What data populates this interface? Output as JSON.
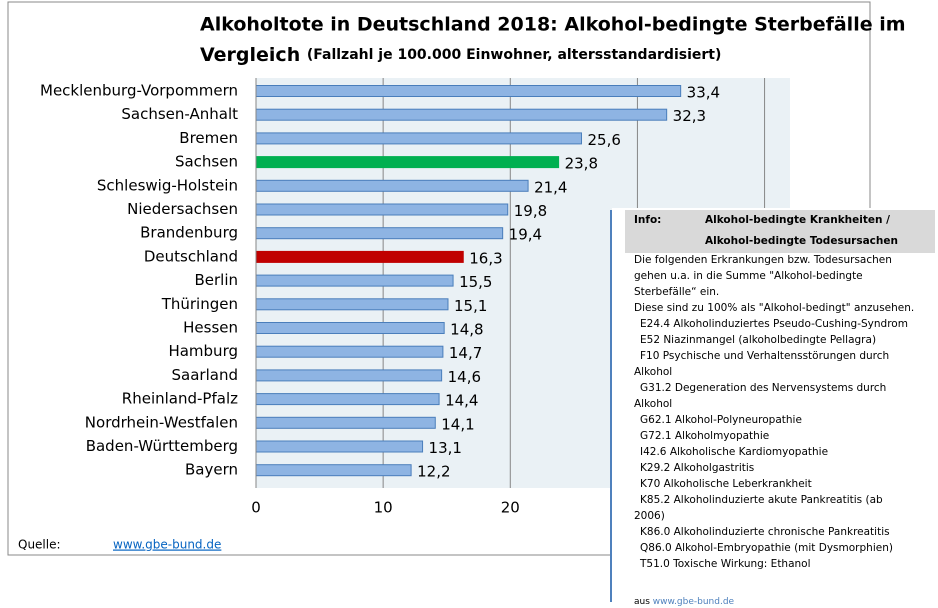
{
  "chart_data": {
    "type": "bar",
    "orientation": "horizontal",
    "title": [
      "Alkoholtote in Deutschland 2018: Alkohol-bedingte Sterbefälle im",
      "Vergleich"
    ],
    "subtitle": "(Fallzahl je 100.000 Einwohner, altersstandardisiert)",
    "categories": [
      "Mecklenburg-Vorpommern",
      "Sachsen-Anhalt",
      "Bremen",
      "Sachsen",
      "Schleswig-Holstein",
      "Niedersachsen",
      "Brandenburg",
      "Deutschland",
      "Berlin",
      "Thüringen",
      "Hessen",
      "Hamburg",
      "Saarland",
      "Rheinland-Pfalz",
      "Nordrhein-Westfalen",
      "Baden-Württemberg",
      "Bayern"
    ],
    "values": [
      33.4,
      32.3,
      25.6,
      23.8,
      21.4,
      19.8,
      19.4,
      16.3,
      15.5,
      15.1,
      14.8,
      14.7,
      14.6,
      14.4,
      14.1,
      13.1,
      12.2
    ],
    "value_labels": [
      "33,4",
      "32,3",
      "25,6",
      "23,8",
      "21,4",
      "19,8",
      "19,4",
      "16,3",
      "15,5",
      "15,1",
      "14,8",
      "14,7",
      "14,6",
      "14,4",
      "14,1",
      "13,1",
      "12,2"
    ],
    "colors": [
      "#8eb4e3",
      "#8eb4e3",
      "#8eb4e3",
      "#00b050",
      "#8eb4e3",
      "#8eb4e3",
      "#8eb4e3",
      "#c00000",
      "#8eb4e3",
      "#8eb4e3",
      "#8eb4e3",
      "#8eb4e3",
      "#8eb4e3",
      "#8eb4e3",
      "#8eb4e3",
      "#8eb4e3",
      "#8eb4e3"
    ],
    "xlim": [
      0,
      42
    ],
    "xticks": [
      0,
      10,
      20,
      30,
      40
    ],
    "grid": true
  },
  "source": {
    "label": "Quelle:",
    "link": "www.gbe-bund.de"
  },
  "info": {
    "label": "Info:",
    "heading": [
      "Alkohol-bedingte Krankheiten /",
      "Alkohol-bedingte Todesursachen"
    ],
    "lines": [
      "Die folgenden Erkrankungen bzw. Todesursachen",
      "gehen u.a. in die Summe \"Alkohol-bedingte",
      "Sterbefälle“ ein.",
      "Diese sind zu 100% als \"Alkohol-bedingt\" anzusehen.",
      "E24.4 Alkoholinduziertes Pseudo-Cushing-Syndrom",
      "E52 Niazinmangel (alkoholbedingte Pellagra)",
      "F10 Psychische und Verhaltensstörungen durch",
      "Alkohol",
      "G31.2 Degeneration des Nervensystems durch",
      "Alkohol",
      "G62.1 Alkohol-Polyneuropathie",
      "G72.1 Alkoholmyopathie",
      "I42.6 Alkoholische Kardiomyopathie",
      "K29.2 Alkoholgastritis",
      "K70 Alkoholische Leberkrankheit",
      "K85.2 Alkoholinduzierte akute Pankreatitis (ab",
      "2006)",
      "K86.0 Alkoholinduzierte chronische Pankreatitis",
      "Q86.0 Alkohol-Embryopathie (mit Dysmorphien)",
      "T51.0 Toxische Wirkung: Ethanol"
    ],
    "footer_prefix": "aus",
    "footer_link": "www.gbe-bund.de"
  }
}
